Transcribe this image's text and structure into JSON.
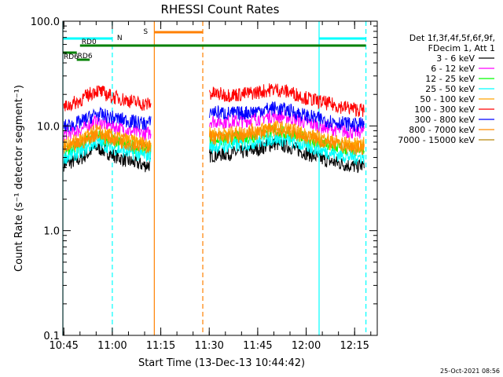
{
  "chart_data": {
    "type": "line",
    "title": "RHESSI Count Rates",
    "xlabel": "Start Time (13-Dec-13 10:44:42)",
    "ylabel": "Count Rate (s⁻¹ detector segment⁻¹)",
    "y_scale": "log",
    "ylim": [
      0.1,
      100.0
    ],
    "xlim": [
      "10:44:42",
      "12:22:00"
    ],
    "x_ticks": [
      "10:45",
      "11:00",
      "11:15",
      "11:30",
      "11:45",
      "12:00",
      "12:15"
    ],
    "y_ticks": [
      "0.1",
      "1.0",
      "10.0",
      "100.0"
    ],
    "grid": false,
    "legend_position": "right",
    "legend_header": [
      "Det 1f,3f,4f,5f,6f,9f,",
      "FDecim 1, Att 1"
    ],
    "data_gap": [
      "11:12",
      "11:30"
    ],
    "series": [
      {
        "name": "3 - 6 keV",
        "color": "#000000",
        "x": [
          "10:45",
          "10:50",
          "10:55",
          "11:00",
          "11:05",
          "11:10",
          "11:30",
          "11:35",
          "11:40",
          "11:45",
          "11:50",
          "11:55",
          "12:00",
          "12:05",
          "12:10",
          "12:15",
          "12:18"
        ],
        "values": [
          4.3,
          4.8,
          6.3,
          5.3,
          4.6,
          4.2,
          5.2,
          5.4,
          5.6,
          6.0,
          6.8,
          6.3,
          5.5,
          4.8,
          4.4,
          4.1,
          4.2
        ]
      },
      {
        "name": "6 - 12 keV",
        "color": "#ff00ff",
        "x": [
          "10:45",
          "10:50",
          "10:55",
          "11:00",
          "11:05",
          "11:10",
          "11:30",
          "11:35",
          "11:40",
          "11:45",
          "11:50",
          "11:55",
          "12:00",
          "12:05",
          "12:10",
          "12:15",
          "12:18"
        ],
        "values": [
          8.3,
          9.2,
          11.0,
          10.0,
          9.0,
          8.4,
          11.2,
          11.0,
          11.1,
          11.8,
          12.5,
          12.0,
          10.8,
          9.8,
          9.1,
          8.7,
          8.9
        ]
      },
      {
        "name": "12 - 25 keV",
        "color": "#00ff00",
        "x": [
          "10:45",
          "10:50",
          "10:55",
          "11:00",
          "11:05",
          "11:10",
          "11:30",
          "11:35",
          "11:40",
          "11:45",
          "11:50",
          "11:55",
          "12:00",
          "12:05",
          "12:10",
          "12:15",
          "12:18"
        ],
        "values": [
          5.8,
          6.5,
          8.1,
          7.2,
          6.5,
          6.0,
          7.4,
          7.4,
          7.6,
          8.2,
          8.8,
          8.3,
          7.4,
          6.7,
          6.2,
          5.8,
          5.9
        ]
      },
      {
        "name": "25 - 50 keV",
        "color": "#00ffff",
        "x": [
          "10:45",
          "10:50",
          "10:55",
          "11:00",
          "11:05",
          "11:10",
          "11:30",
          "11:35",
          "11:40",
          "11:45",
          "11:50",
          "11:55",
          "12:00",
          "12:05",
          "12:10",
          "12:15",
          "12:18"
        ],
        "values": [
          5.0,
          5.6,
          7.0,
          6.2,
          5.6,
          5.2,
          6.4,
          6.4,
          6.6,
          7.1,
          7.6,
          7.2,
          6.4,
          5.8,
          5.3,
          5.0,
          5.1
        ]
      },
      {
        "name": "50 - 100 keV",
        "color": "#ffa500",
        "x": [
          "10:45",
          "10:50",
          "10:55",
          "11:00",
          "11:05",
          "11:10",
          "11:30",
          "11:35",
          "11:40",
          "11:45",
          "11:50",
          "11:55",
          "12:00",
          "12:05",
          "12:10",
          "12:15",
          "12:18"
        ],
        "values": [
          6.6,
          7.4,
          9.0,
          8.0,
          7.3,
          6.8,
          8.4,
          8.4,
          8.7,
          9.2,
          9.8,
          9.3,
          8.3,
          7.6,
          7.0,
          6.6,
          6.7
        ]
      },
      {
        "name": "100 - 300 keV",
        "color": "#ff0000",
        "x": [
          "10:45",
          "10:50",
          "10:55",
          "11:00",
          "11:05",
          "11:10",
          "11:30",
          "11:35",
          "11:40",
          "11:45",
          "11:50",
          "11:55",
          "12:00",
          "12:05",
          "12:10",
          "12:15",
          "12:18"
        ],
        "values": [
          15.0,
          17.5,
          22.0,
          19.0,
          17.5,
          16.0,
          20.5,
          19.8,
          20.0,
          21.0,
          22.5,
          21.0,
          18.5,
          16.8,
          15.5,
          14.5,
          14.0
        ]
      },
      {
        "name": "300 - 800 keV",
        "color": "#0000ff",
        "x": [
          "10:45",
          "10:50",
          "10:55",
          "11:00",
          "11:05",
          "11:10",
          "11:30",
          "11:35",
          "11:40",
          "11:45",
          "11:50",
          "11:55",
          "12:00",
          "12:05",
          "12:10",
          "12:15",
          "12:18"
        ],
        "values": [
          9.8,
          10.8,
          13.0,
          12.0,
          11.2,
          10.5,
          13.8,
          13.2,
          13.2,
          14.0,
          14.8,
          14.0,
          12.5,
          11.5,
          10.8,
          10.2,
          10.4
        ]
      },
      {
        "name": "800 - 7000 keV",
        "color": "#ff8c00",
        "x": [
          "10:45",
          "10:50",
          "10:55",
          "11:00",
          "11:05",
          "11:10",
          "11:30",
          "11:35",
          "11:40",
          "11:45",
          "11:50",
          "11:55",
          "12:00",
          "12:05",
          "12:10",
          "12:15",
          "12:18"
        ],
        "values": [
          6.0,
          6.8,
          8.4,
          7.5,
          6.8,
          6.3,
          7.8,
          7.8,
          8.0,
          8.6,
          9.2,
          8.7,
          7.8,
          7.1,
          6.5,
          6.1,
          6.2
        ]
      },
      {
        "name": "7000 - 15000 keV",
        "color": "#b8860b",
        "x": [],
        "values": []
      }
    ],
    "annotations": {
      "night": {
        "label": "N",
        "color": "#00ffff",
        "bars": [
          [
            "10:44:42",
            "11:00"
          ],
          [
            "12:04",
            "12:18:30"
          ]
        ],
        "vlines_solid": [
          "10:44:42",
          "12:04"
        ],
        "vlines_dashed": [
          "11:00",
          "12:18:30"
        ]
      },
      "saa": {
        "label": "S",
        "color": "#ff8000",
        "bars": [
          [
            "11:13",
            "11:28"
          ]
        ],
        "vlines_solid": [
          "11:13"
        ],
        "vlines_dashed": [
          "11:28"
        ]
      },
      "decimation": {
        "color": "#008000",
        "bars": [
          {
            "label": "RD0",
            "from": "10:50",
            "to": "12:18:30",
            "level": 1
          },
          {
            "label": "RD6",
            "from": "10:44:42",
            "to": "10:49",
            "level": 2
          },
          {
            "label": "RD6",
            "from": "10:49",
            "to": "10:53",
            "level": 3
          }
        ]
      }
    }
  },
  "footer": {
    "timestamp": "25-Oct-2021 08:56"
  }
}
